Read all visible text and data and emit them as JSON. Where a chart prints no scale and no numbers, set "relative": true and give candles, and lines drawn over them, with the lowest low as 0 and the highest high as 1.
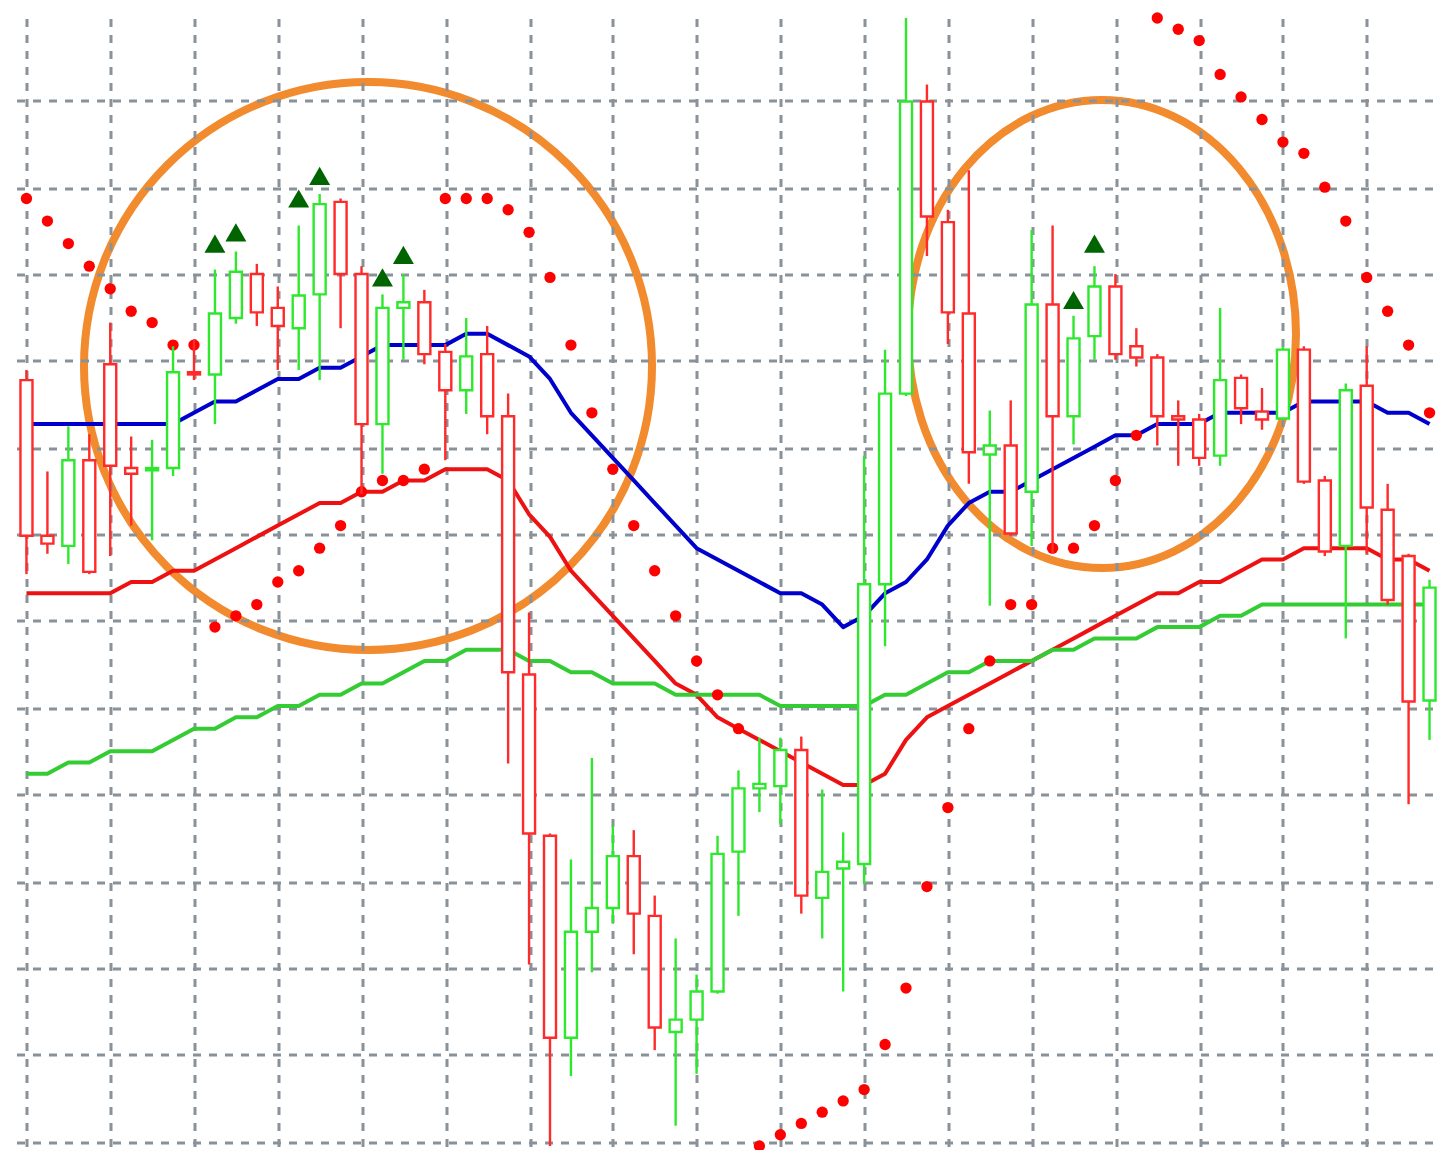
{
  "chart_data": {
    "type": "candlestick",
    "relative": true,
    "grid": true,
    "categories": [
      null,
      null,
      null,
      null,
      null,
      null,
      null,
      null,
      null,
      null,
      null,
      null,
      null,
      null,
      null,
      null,
      null,
      null,
      null,
      null,
      null,
      null,
      null,
      null,
      null,
      null,
      null,
      null,
      null,
      null,
      null,
      null,
      null,
      null,
      null,
      null,
      null,
      null,
      null,
      null,
      null,
      null,
      null,
      null,
      null,
      null,
      null,
      null,
      null,
      null,
      null,
      null,
      null,
      null,
      null,
      null,
      null,
      null,
      null,
      null,
      null,
      null,
      null,
      null,
      null,
      null,
      null,
      null
    ],
    "ohlc": [
      [
        0.679,
        0.688,
        0.507,
        0.541
      ],
      [
        0.541,
        0.598,
        0.525,
        0.534
      ],
      [
        0.532,
        0.638,
        0.516,
        0.608
      ],
      [
        0.608,
        0.631,
        0.507,
        0.509
      ],
      [
        0.693,
        0.73,
        0.523,
        0.603
      ],
      [
        0.601,
        0.629,
        0.55,
        0.596
      ],
      [
        0.599,
        0.626,
        0.537,
        0.601
      ],
      [
        0.601,
        0.709,
        0.594,
        0.686
      ],
      [
        0.686,
        0.715,
        0.679,
        0.684
      ],
      [
        0.684,
        0.777,
        0.64,
        0.738
      ],
      [
        0.734,
        0.793,
        0.729,
        0.775
      ],
      [
        0.773,
        0.782,
        0.727,
        0.739
      ],
      [
        0.743,
        0.762,
        0.688,
        0.727
      ],
      [
        0.725,
        0.816,
        0.688,
        0.754
      ],
      [
        0.755,
        0.844,
        0.679,
        0.835
      ],
      [
        0.837,
        0.84,
        0.725,
        0.773
      ],
      [
        0.773,
        0.78,
        0.578,
        0.64
      ],
      [
        0.64,
        0.755,
        0.596,
        0.743
      ],
      [
        0.743,
        0.773,
        0.697,
        0.748
      ],
      [
        0.748,
        0.759,
        0.693,
        0.702
      ],
      [
        0.704,
        0.711,
        0.608,
        0.67
      ],
      [
        0.67,
        0.734,
        0.649,
        0.7
      ],
      [
        0.702,
        0.727,
        0.631,
        0.647
      ],
      [
        0.647,
        0.667,
        0.339,
        0.42
      ],
      [
        0.418,
        0.473,
        0.161,
        0.277
      ],
      [
        0.275,
        0.277,
        0.0,
        0.096
      ],
      [
        0.096,
        0.254,
        0.062,
        0.19
      ],
      [
        0.19,
        0.344,
        0.154,
        0.211
      ],
      [
        0.211,
        0.284,
        0.197,
        0.257
      ],
      [
        0.257,
        0.28,
        0.17,
        0.206
      ],
      [
        0.204,
        0.222,
        0.085,
        0.105
      ],
      [
        0.101,
        0.184,
        0.018,
        0.112
      ],
      [
        0.112,
        0.152,
        0.064,
        0.137
      ],
      [
        0.137,
        0.275,
        0.135,
        0.259
      ],
      [
        0.261,
        0.333,
        0.204,
        0.317
      ],
      [
        0.317,
        0.362,
        0.296,
        0.321
      ],
      [
        0.319,
        0.362,
        0.285,
        0.351
      ],
      [
        0.351,
        0.363,
        0.206,
        0.222
      ],
      [
        0.22,
        0.316,
        0.184,
        0.243
      ],
      [
        0.246,
        0.278,
        0.137,
        0.252
      ],
      [
        0.25,
        0.612,
        0.232,
        0.498
      ],
      [
        0.498,
        0.706,
        0.443,
        0.667
      ],
      [
        0.667,
        1.0,
        0.665,
        0.926
      ],
      [
        0.926,
        0.941,
        0.789,
        0.824
      ],
      [
        0.819,
        0.83,
        0.711,
        0.739
      ],
      [
        0.738,
        0.865,
        0.587,
        0.615
      ],
      [
        0.613,
        0.652,
        0.479,
        0.621
      ],
      [
        0.621,
        0.661,
        0.541,
        0.543
      ],
      [
        0.58,
        0.812,
        0.532,
        0.746
      ],
      [
        0.746,
        0.816,
        0.525,
        0.647
      ],
      [
        0.647,
        0.736,
        0.622,
        0.716
      ],
      [
        0.718,
        0.78,
        0.697,
        0.762
      ],
      [
        0.762,
        0.773,
        0.697,
        0.702
      ],
      [
        0.709,
        0.725,
        0.691,
        0.699
      ],
      [
        0.699,
        0.702,
        0.621,
        0.647
      ],
      [
        0.647,
        0.661,
        0.603,
        0.644
      ],
      [
        0.644,
        0.649,
        0.603,
        0.61
      ],
      [
        0.612,
        0.743,
        0.603,
        0.679
      ],
      [
        0.681,
        0.684,
        0.64,
        0.654
      ],
      [
        0.651,
        0.672,
        0.635,
        0.644
      ],
      [
        0.645,
        0.709,
        0.644,
        0.706
      ],
      [
        0.706,
        0.709,
        0.587,
        0.589
      ],
      [
        0.59,
        0.594,
        0.523,
        0.527
      ],
      [
        0.532,
        0.676,
        0.45,
        0.67
      ],
      [
        0.674,
        0.709,
        0.525,
        0.566
      ],
      [
        0.564,
        0.587,
        0.48,
        0.484
      ],
      [
        0.523,
        0.525,
        0.303,
        0.394
      ],
      [
        0.395,
        0.502,
        0.36,
        0.495
      ]
    ],
    "colors": [
      "#ff2a2a",
      "#ff2a2a",
      "#2ee82e",
      "#ff2a2a",
      "#ff2a2a",
      "#ff2a2a",
      "#2ee82e",
      "#2ee82e",
      "#ff2a2a",
      "#2ee82e",
      "#2ee82e",
      "#ff2a2a",
      "#ff2a2a",
      "#2ee82e",
      "#2ee82e",
      "#ff2a2a",
      "#ff2a2a",
      "#2ee82e",
      "#2ee82e",
      "#ff2a2a",
      "#ff2a2a",
      "#2ee82e",
      "#ff2a2a",
      "#ff2a2a",
      "#ff2a2a",
      "#ff2a2a",
      "#2ee82e",
      "#2ee82e",
      "#2ee82e",
      "#ff2a2a",
      "#ff2a2a",
      "#2ee82e",
      "#2ee82e",
      "#2ee82e",
      "#2ee82e",
      "#2ee82e",
      "#2ee82e",
      "#ff2a2a",
      "#2ee82e",
      "#2ee82e",
      "#2ee82e",
      "#2ee82e",
      "#2ee82e",
      "#ff2a2a",
      "#ff2a2a",
      "#ff2a2a",
      "#2ee82e",
      "#ff2a2a",
      "#2ee82e",
      "#ff2a2a",
      "#2ee82e",
      "#2ee82e",
      "#ff2a2a",
      "#ff2a2a",
      "#ff2a2a",
      "#ff2a2a",
      "#ff2a2a",
      "#2ee82e",
      "#ff2a2a",
      "#ff2a2a",
      "#2ee82e",
      "#ff2a2a",
      "#ff2a2a",
      "#2ee82e",
      "#ff2a2a",
      "#ff2a2a",
      "#ff2a2a",
      "#2ee82e"
    ],
    "series": [
      {
        "type": "line",
        "color": "#0000cc",
        "values": [
          0.64,
          0.64,
          0.64,
          0.64,
          0.64,
          0.64,
          0.64,
          0.64,
          0.65,
          0.66,
          0.66,
          0.67,
          0.68,
          0.68,
          0.69,
          0.69,
          0.7,
          0.71,
          0.71,
          0.71,
          0.71,
          0.72,
          0.72,
          0.71,
          0.7,
          0.68,
          0.65,
          0.63,
          0.61,
          0.59,
          0.57,
          0.55,
          0.53,
          0.52,
          0.51,
          0.5,
          0.49,
          0.49,
          0.48,
          0.46,
          0.47,
          0.49,
          0.5,
          0.52,
          0.55,
          0.57,
          0.58,
          0.58,
          0.59,
          0.6,
          0.61,
          0.62,
          0.63,
          0.63,
          0.64,
          0.64,
          0.64,
          0.65,
          0.65,
          0.65,
          0.65,
          0.66,
          0.66,
          0.66,
          0.66,
          0.65,
          0.65,
          0.64
        ]
      },
      {
        "type": "line",
        "color": "#ee1111",
        "values": [
          0.49,
          0.49,
          0.49,
          0.49,
          0.49,
          0.5,
          0.5,
          0.51,
          0.51,
          0.52,
          0.53,
          0.54,
          0.55,
          0.56,
          0.57,
          0.57,
          0.58,
          0.58,
          0.59,
          0.59,
          0.6,
          0.6,
          0.6,
          0.59,
          0.56,
          0.54,
          0.51,
          0.49,
          0.47,
          0.45,
          0.43,
          0.41,
          0.4,
          0.38,
          0.37,
          0.36,
          0.35,
          0.34,
          0.33,
          0.32,
          0.32,
          0.33,
          0.36,
          0.38,
          0.39,
          0.4,
          0.41,
          0.42,
          0.43,
          0.44,
          0.45,
          0.46,
          0.47,
          0.48,
          0.49,
          0.49,
          0.5,
          0.5,
          0.51,
          0.52,
          0.52,
          0.53,
          0.53,
          0.53,
          0.53,
          0.52,
          0.52,
          0.51
        ]
      },
      {
        "type": "line",
        "color": "#33cc33",
        "values": [
          0.33,
          0.33,
          0.34,
          0.34,
          0.35,
          0.35,
          0.35,
          0.36,
          0.37,
          0.37,
          0.38,
          0.38,
          0.39,
          0.39,
          0.4,
          0.4,
          0.41,
          0.41,
          0.42,
          0.43,
          0.43,
          0.44,
          0.44,
          0.44,
          0.43,
          0.43,
          0.42,
          0.42,
          0.41,
          0.41,
          0.41,
          0.4,
          0.4,
          0.4,
          0.4,
          0.4,
          0.39,
          0.39,
          0.39,
          0.39,
          0.39,
          0.4,
          0.4,
          0.41,
          0.42,
          0.42,
          0.43,
          0.43,
          0.43,
          0.44,
          0.44,
          0.45,
          0.45,
          0.45,
          0.46,
          0.46,
          0.46,
          0.47,
          0.47,
          0.48,
          0.48,
          0.48,
          0.48,
          0.48,
          0.48,
          0.48,
          0.48,
          0.48
        ]
      },
      {
        "type": "scatter",
        "marker": "circle",
        "color": "#ff0000",
        "values": [
          0.84,
          0.82,
          0.8,
          0.78,
          0.76,
          0.74,
          0.73,
          0.71,
          0.71,
          0.46,
          0.47,
          0.48,
          0.5,
          0.51,
          0.53,
          0.55,
          0.58,
          0.59,
          0.59,
          0.6,
          0.84,
          0.84,
          0.84,
          0.83,
          0.81,
          0.77,
          0.71,
          0.65,
          0.6,
          0.55,
          0.51,
          0.47,
          0.43,
          0.4,
          0.37,
          0.0,
          0.01,
          0.02,
          0.03,
          0.04,
          0.05,
          0.09,
          0.14,
          0.23,
          0.3,
          0.37,
          0.43,
          0.48,
          0.48,
          0.53,
          0.53,
          0.55,
          0.59,
          0.63,
          1.0,
          0.99,
          0.98,
          0.95,
          0.93,
          0.91,
          0.89,
          0.88,
          0.85,
          0.82,
          0.77,
          0.74,
          0.71,
          0.65
        ]
      },
      {
        "type": "scatter",
        "marker": "triangle",
        "color": "#006400",
        "values": [
          null,
          null,
          null,
          null,
          null,
          null,
          null,
          null,
          null,
          0.8,
          0.81,
          null,
          null,
          0.84,
          0.86,
          null,
          null,
          0.77,
          0.79,
          null,
          null,
          null,
          null,
          null,
          null,
          null,
          null,
          null,
          null,
          null,
          null,
          null,
          null,
          null,
          null,
          null,
          null,
          null,
          null,
          null,
          null,
          null,
          null,
          null,
          null,
          null,
          null,
          null,
          null,
          null,
          0.75,
          0.8,
          null,
          null,
          null,
          null,
          null,
          null,
          null,
          null,
          null,
          null,
          null,
          null,
          null,
          null,
          null,
          null
        ]
      }
    ]
  }
}
